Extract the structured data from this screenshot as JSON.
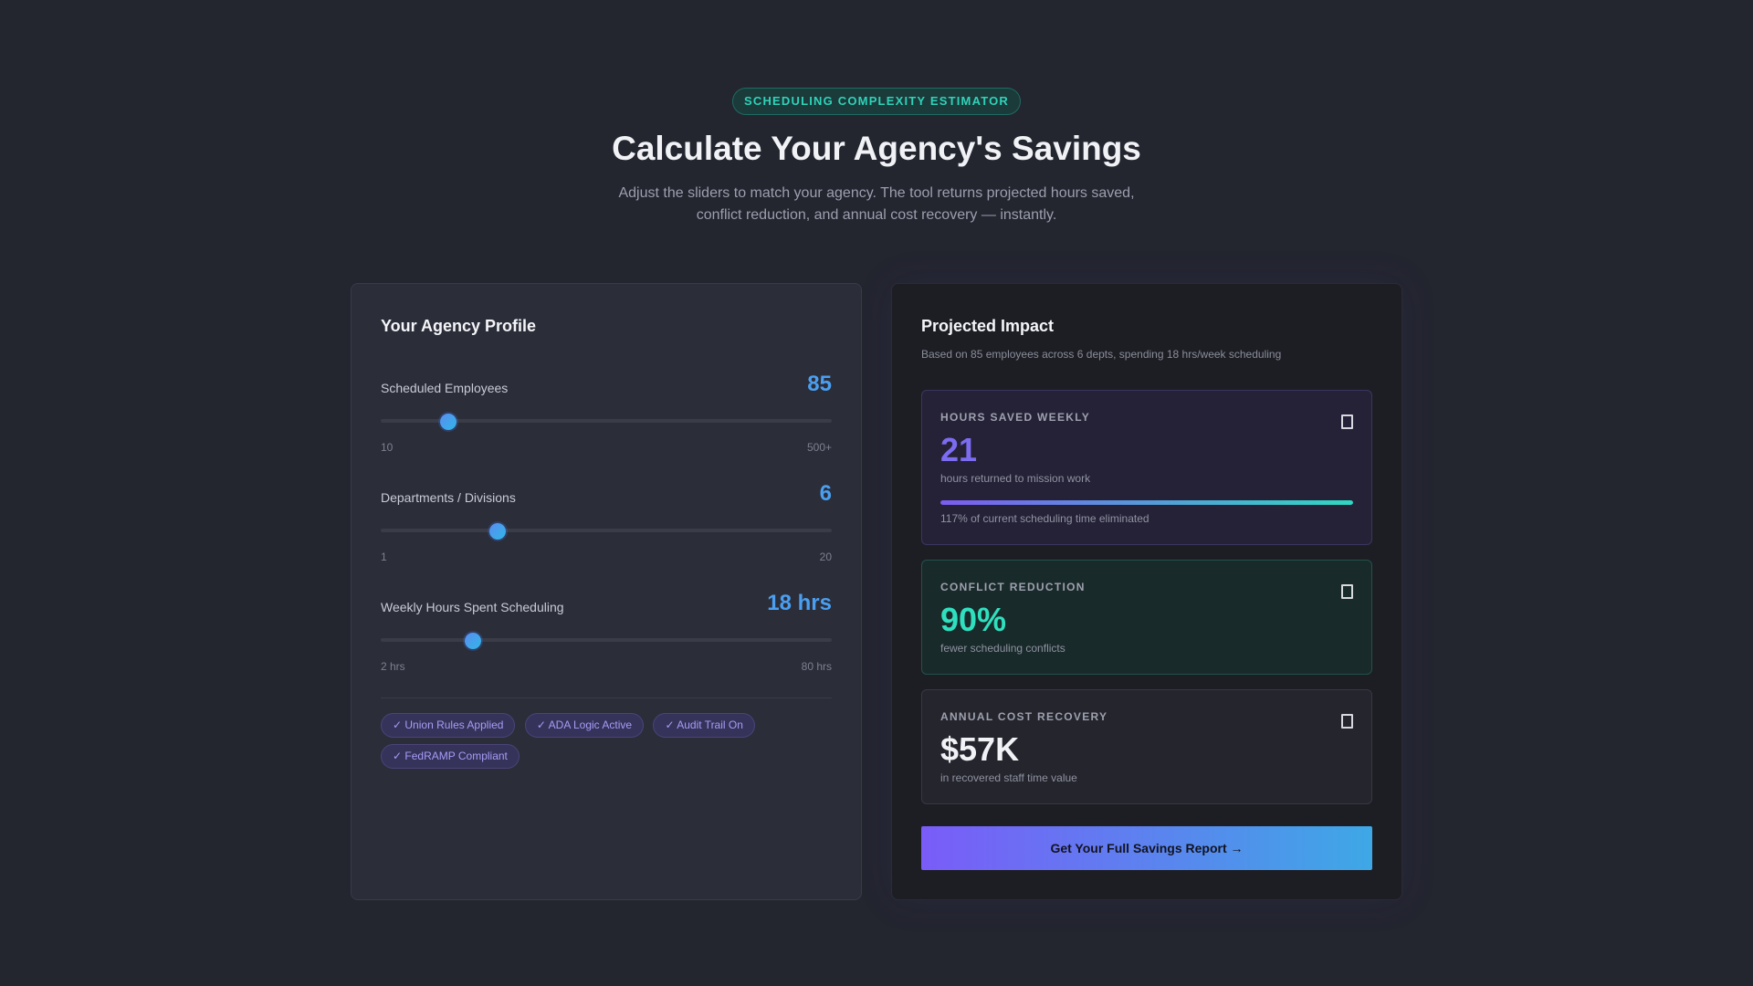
{
  "header": {
    "badge": "SCHEDULING COMPLEXITY ESTIMATOR",
    "title": "Calculate Your Agency's Savings",
    "subtitle": "Adjust the sliders to match your agency. The tool returns projected hours saved, conflict reduction, and annual cost recovery — instantly."
  },
  "profile": {
    "title": "Your Agency Profile",
    "sliders": [
      {
        "label": "Scheduled Employees",
        "value": "85",
        "level": 0.15,
        "min": "10",
        "max": "500+"
      },
      {
        "label": "Departments / Divisions",
        "value": "6",
        "level": 0.26,
        "min": "1",
        "max": "20"
      },
      {
        "label": "Weekly Hours Spent Scheduling",
        "value": "18 hrs",
        "level": 0.205,
        "min": "2 hrs",
        "max": "80 hrs"
      }
    ],
    "tags": [
      "✓ Union Rules Applied",
      "✓ ADA Logic Active",
      "✓ Audit Trail On",
      "✓ FedRAMP Compliant"
    ]
  },
  "impact": {
    "title": "Projected Impact",
    "subtitle": "Based on 85 employees across 6 depts, spending 18 hrs/week scheduling",
    "hours": {
      "label": "HOURS SAVED WEEKLY",
      "value": "21",
      "desc": "hours returned to mission work",
      "progress": 1.0,
      "progress_text": "117% of current scheduling time eliminated"
    },
    "conflict": {
      "label": "CONFLICT REDUCTION",
      "value": "90%",
      "desc": "fewer scheduling conflicts"
    },
    "cost": {
      "label": "ANNUAL COST RECOVERY",
      "value": "$57K",
      "desc": "in recovered staff time value"
    },
    "cta": "Get Your Full Savings Report →"
  },
  "colors": {
    "accent_blue": "#4a9ff0",
    "accent_purple": "#7c6cf0",
    "accent_teal": "#2fe0bf",
    "background": "#23252f"
  },
  "icons": {
    "card_icon": "document-icon"
  }
}
